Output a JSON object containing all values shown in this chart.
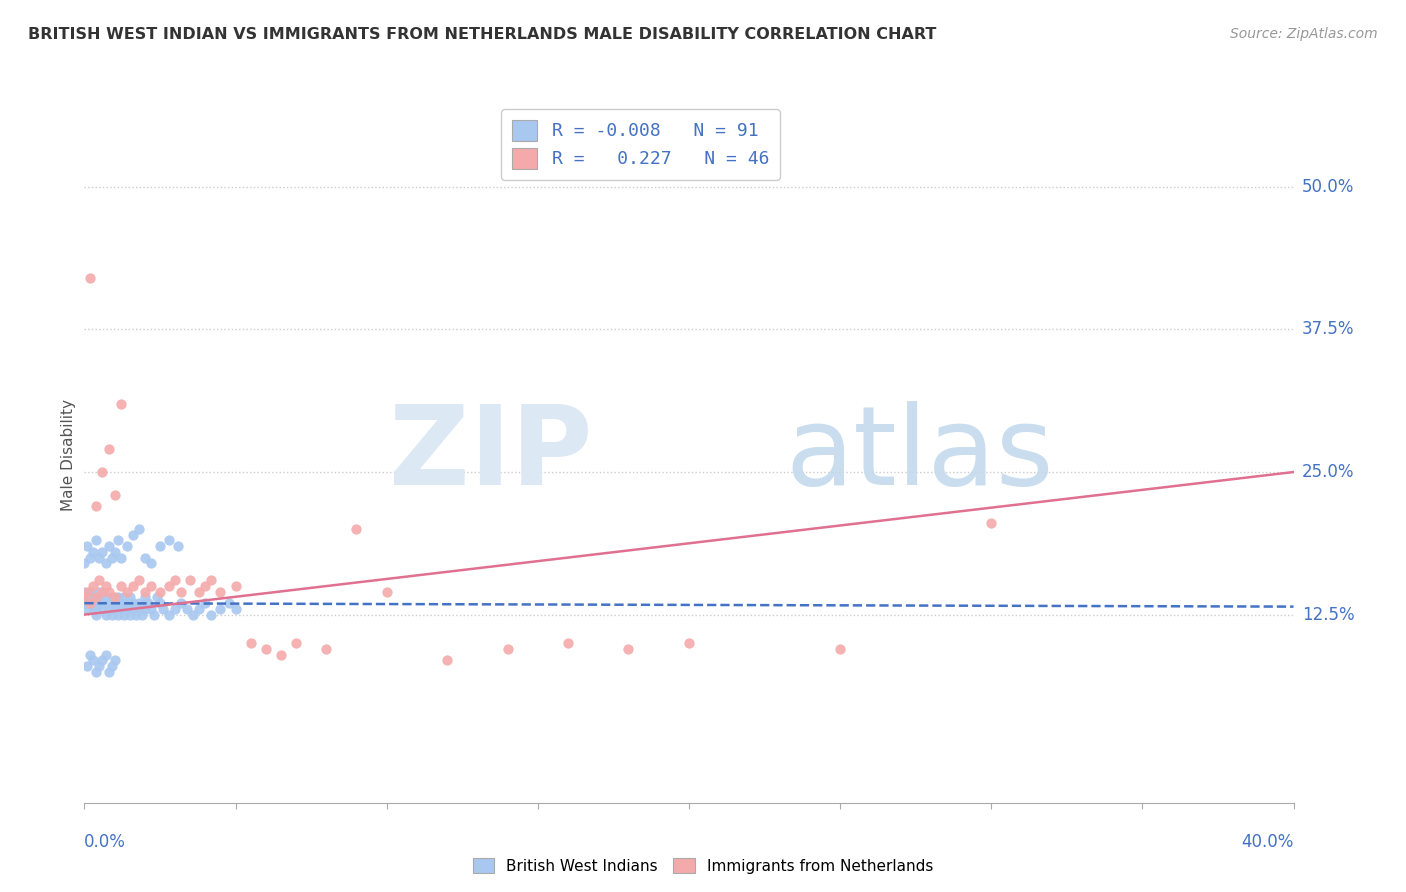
{
  "title": "BRITISH WEST INDIAN VS IMMIGRANTS FROM NETHERLANDS MALE DISABILITY CORRELATION CHART",
  "source": "Source: ZipAtlas.com",
  "ylabel": "Male Disability",
  "ytick_vals": [
    0.125,
    0.25,
    0.375,
    0.5
  ],
  "ytick_labels": [
    "12.5%",
    "25.0%",
    "37.5%",
    "50.0%"
  ],
  "xlim": [
    0.0,
    0.4
  ],
  "ylim": [
    -0.04,
    0.57
  ],
  "blue_color": "#A8C8F0",
  "pink_color": "#F4AAAA",
  "blue_line_color": "#4472C4",
  "pink_line_color": "#E07090",
  "tick_label_color": "#4472C4",
  "blue_scatter_x": [
    0.0,
    0.0,
    0.0,
    0.001,
    0.001,
    0.002,
    0.002,
    0.003,
    0.003,
    0.003,
    0.004,
    0.004,
    0.005,
    0.005,
    0.005,
    0.006,
    0.006,
    0.007,
    0.007,
    0.008,
    0.008,
    0.009,
    0.009,
    0.01,
    0.01,
    0.011,
    0.011,
    0.012,
    0.012,
    0.013,
    0.013,
    0.014,
    0.014,
    0.015,
    0.015,
    0.016,
    0.016,
    0.017,
    0.018,
    0.018,
    0.019,
    0.02,
    0.02,
    0.021,
    0.022,
    0.023,
    0.024,
    0.025,
    0.026,
    0.028,
    0.03,
    0.032,
    0.034,
    0.036,
    0.038,
    0.04,
    0.042,
    0.045,
    0.048,
    0.05,
    0.0,
    0.001,
    0.002,
    0.003,
    0.004,
    0.005,
    0.006,
    0.007,
    0.008,
    0.009,
    0.01,
    0.011,
    0.012,
    0.014,
    0.016,
    0.018,
    0.02,
    0.022,
    0.025,
    0.028,
    0.031,
    0.001,
    0.002,
    0.003,
    0.004,
    0.005,
    0.006,
    0.007,
    0.008,
    0.009,
    0.01
  ],
  "blue_scatter_y": [
    0.135,
    0.14,
    0.145,
    0.13,
    0.135,
    0.14,
    0.145,
    0.13,
    0.135,
    0.14,
    0.125,
    0.13,
    0.135,
    0.14,
    0.145,
    0.13,
    0.135,
    0.125,
    0.14,
    0.13,
    0.135,
    0.125,
    0.14,
    0.13,
    0.135,
    0.125,
    0.14,
    0.13,
    0.135,
    0.125,
    0.14,
    0.13,
    0.135,
    0.125,
    0.14,
    0.13,
    0.135,
    0.125,
    0.13,
    0.135,
    0.125,
    0.13,
    0.14,
    0.135,
    0.13,
    0.125,
    0.14,
    0.135,
    0.13,
    0.125,
    0.13,
    0.135,
    0.13,
    0.125,
    0.13,
    0.135,
    0.125,
    0.13,
    0.135,
    0.13,
    0.17,
    0.185,
    0.175,
    0.18,
    0.19,
    0.175,
    0.18,
    0.17,
    0.185,
    0.175,
    0.18,
    0.19,
    0.175,
    0.185,
    0.195,
    0.2,
    0.175,
    0.17,
    0.185,
    0.19,
    0.185,
    0.08,
    0.09,
    0.085,
    0.075,
    0.08,
    0.085,
    0.09,
    0.075,
    0.08,
    0.085
  ],
  "pink_scatter_x": [
    0.0,
    0.001,
    0.002,
    0.003,
    0.004,
    0.005,
    0.006,
    0.007,
    0.008,
    0.01,
    0.012,
    0.014,
    0.016,
    0.018,
    0.02,
    0.022,
    0.025,
    0.028,
    0.03,
    0.032,
    0.035,
    0.038,
    0.04,
    0.042,
    0.045,
    0.05,
    0.055,
    0.06,
    0.065,
    0.07,
    0.08,
    0.09,
    0.1,
    0.12,
    0.14,
    0.16,
    0.18,
    0.2,
    0.25,
    0.3,
    0.002,
    0.004,
    0.006,
    0.008,
    0.01,
    0.012
  ],
  "pink_scatter_y": [
    0.14,
    0.145,
    0.135,
    0.15,
    0.14,
    0.155,
    0.145,
    0.15,
    0.145,
    0.14,
    0.15,
    0.145,
    0.15,
    0.155,
    0.145,
    0.15,
    0.145,
    0.15,
    0.155,
    0.145,
    0.155,
    0.145,
    0.15,
    0.155,
    0.145,
    0.15,
    0.1,
    0.095,
    0.09,
    0.1,
    0.095,
    0.2,
    0.145,
    0.085,
    0.095,
    0.1,
    0.095,
    0.1,
    0.095,
    0.205,
    0.42,
    0.22,
    0.25,
    0.27,
    0.23,
    0.31
  ],
  "blue_line_x": [
    0.0,
    0.4
  ],
  "blue_line_y": [
    0.135,
    0.132
  ],
  "pink_line_x": [
    0.0,
    0.4
  ],
  "pink_line_y": [
    0.125,
    0.25
  ]
}
